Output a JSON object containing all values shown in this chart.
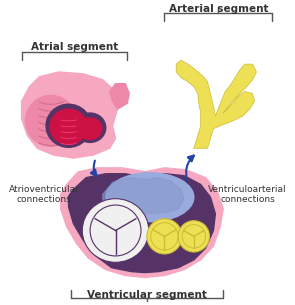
{
  "background_color": "#ffffff",
  "atrial_segment_label": "Atrial segment",
  "arterial_segment_label": "Arterial segment",
  "ventricular_segment_label": "Ventricular segment",
  "av_connections_label": "Atrioventricular\nconnections",
  "va_connections_label": "Ventriculoarterial\nconnections",
  "pink_light": "#F5A8C0",
  "pink_medium": "#EE88A8",
  "pink_dark": "#CC6688",
  "red_dark": "#AA2255",
  "crimson": "#CC1144",
  "purple_dark": "#553366",
  "blue_light": "#99AADD",
  "blue_medium": "#8899CC",
  "yellow_light": "#EEE055",
  "yellow_medium": "#CCBB33",
  "arrow_color": "#2244AA",
  "bracket_color": "#555555",
  "text_color": "#333333",
  "label_fontsize": 6.5,
  "segment_fontsize": 7.5
}
